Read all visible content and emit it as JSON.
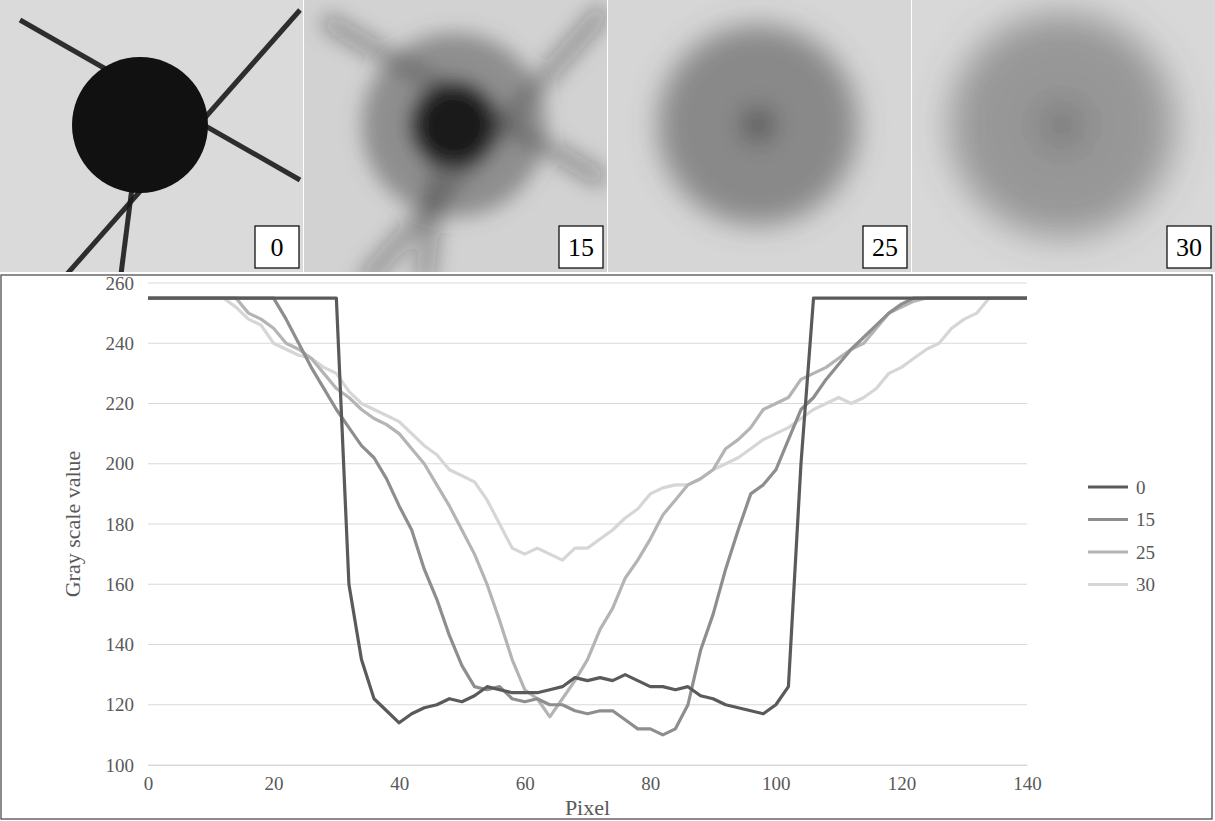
{
  "photos": {
    "labels": [
      "0",
      "15",
      "25",
      "30"
    ]
  },
  "chart_data": {
    "type": "line",
    "xlabel": "Pixel",
    "ylabel": "Gray scale value",
    "xlim": [
      0,
      140
    ],
    "xticks": [
      0,
      20,
      40,
      60,
      80,
      100,
      120,
      140
    ],
    "ylim": [
      100,
      260
    ],
    "yticks": [
      100,
      120,
      140,
      160,
      180,
      200,
      220,
      240,
      260
    ],
    "grid": true,
    "legend": "right",
    "x": [
      0,
      2,
      4,
      6,
      8,
      10,
      12,
      14,
      16,
      18,
      20,
      22,
      24,
      26,
      28,
      30,
      32,
      34,
      36,
      38,
      40,
      42,
      44,
      46,
      48,
      50,
      52,
      54,
      56,
      58,
      60,
      62,
      64,
      66,
      68,
      70,
      72,
      74,
      76,
      78,
      80,
      82,
      84,
      86,
      88,
      90,
      92,
      94,
      96,
      98,
      100,
      102,
      104,
      106,
      108,
      110,
      112,
      114,
      116,
      118,
      120,
      122,
      124,
      126,
      128,
      130,
      132,
      134,
      136,
      138,
      140
    ],
    "series": [
      {
        "name": "0",
        "color": "#5a5a5a",
        "values": [
          255,
          255,
          255,
          255,
          255,
          255,
          255,
          255,
          255,
          255,
          255,
          255,
          255,
          255,
          255,
          255,
          160,
          135,
          122,
          118,
          114,
          117,
          119,
          120,
          122,
          121,
          123,
          126,
          125,
          124,
          124,
          124,
          125,
          126,
          129,
          128,
          129,
          128,
          130,
          128,
          126,
          126,
          125,
          126,
          123,
          122,
          120,
          119,
          118,
          117,
          120,
          126,
          200,
          255,
          255,
          255,
          255,
          255,
          255,
          255,
          255,
          255,
          255,
          255,
          255,
          255,
          255,
          255,
          255,
          255,
          255
        ]
      },
      {
        "name": "15",
        "color": "#8e8e8e",
        "values": [
          255,
          255,
          255,
          255,
          255,
          255,
          255,
          255,
          255,
          255,
          255,
          248,
          240,
          232,
          225,
          218,
          212,
          206,
          202,
          195,
          186,
          178,
          165,
          155,
          143,
          133,
          126,
          125,
          126,
          122,
          121,
          122,
          120,
          120,
          118,
          117,
          118,
          118,
          115,
          112,
          112,
          110,
          112,
          120,
          138,
          150,
          165,
          178,
          190,
          193,
          198,
          208,
          218,
          222,
          228,
          233,
          238,
          242,
          246,
          250,
          253,
          255,
          255,
          255,
          255,
          255,
          255,
          255,
          255,
          255,
          255
        ]
      },
      {
        "name": "25",
        "color": "#b4b4b4",
        "values": [
          255,
          255,
          255,
          255,
          255,
          255,
          255,
          255,
          250,
          248,
          245,
          240,
          238,
          235,
          230,
          225,
          222,
          218,
          215,
          213,
          210,
          205,
          200,
          193,
          186,
          178,
          170,
          160,
          148,
          135,
          125,
          122,
          116,
          122,
          128,
          135,
          145,
          152,
          162,
          168,
          175,
          183,
          188,
          193,
          195,
          198,
          205,
          208,
          212,
          218,
          220,
          222,
          228,
          230,
          232,
          235,
          238,
          240,
          245,
          250,
          252,
          254,
          255,
          255,
          255,
          255,
          255,
          255,
          255,
          255,
          255
        ]
      },
      {
        "name": "30",
        "color": "#d6d6d6",
        "values": [
          255,
          255,
          255,
          255,
          255,
          255,
          255,
          252,
          248,
          246,
          240,
          238,
          236,
          235,
          232,
          230,
          224,
          220,
          218,
          216,
          214,
          210,
          206,
          203,
          198,
          196,
          194,
          188,
          180,
          172,
          170,
          172,
          170,
          168,
          172,
          172,
          175,
          178,
          182,
          185,
          190,
          192,
          193,
          193,
          195,
          198,
          200,
          202,
          205,
          208,
          210,
          212,
          215,
          218,
          220,
          222,
          220,
          222,
          225,
          230,
          232,
          235,
          238,
          240,
          245,
          248,
          250,
          255,
          255,
          255,
          255
        ]
      }
    ]
  }
}
